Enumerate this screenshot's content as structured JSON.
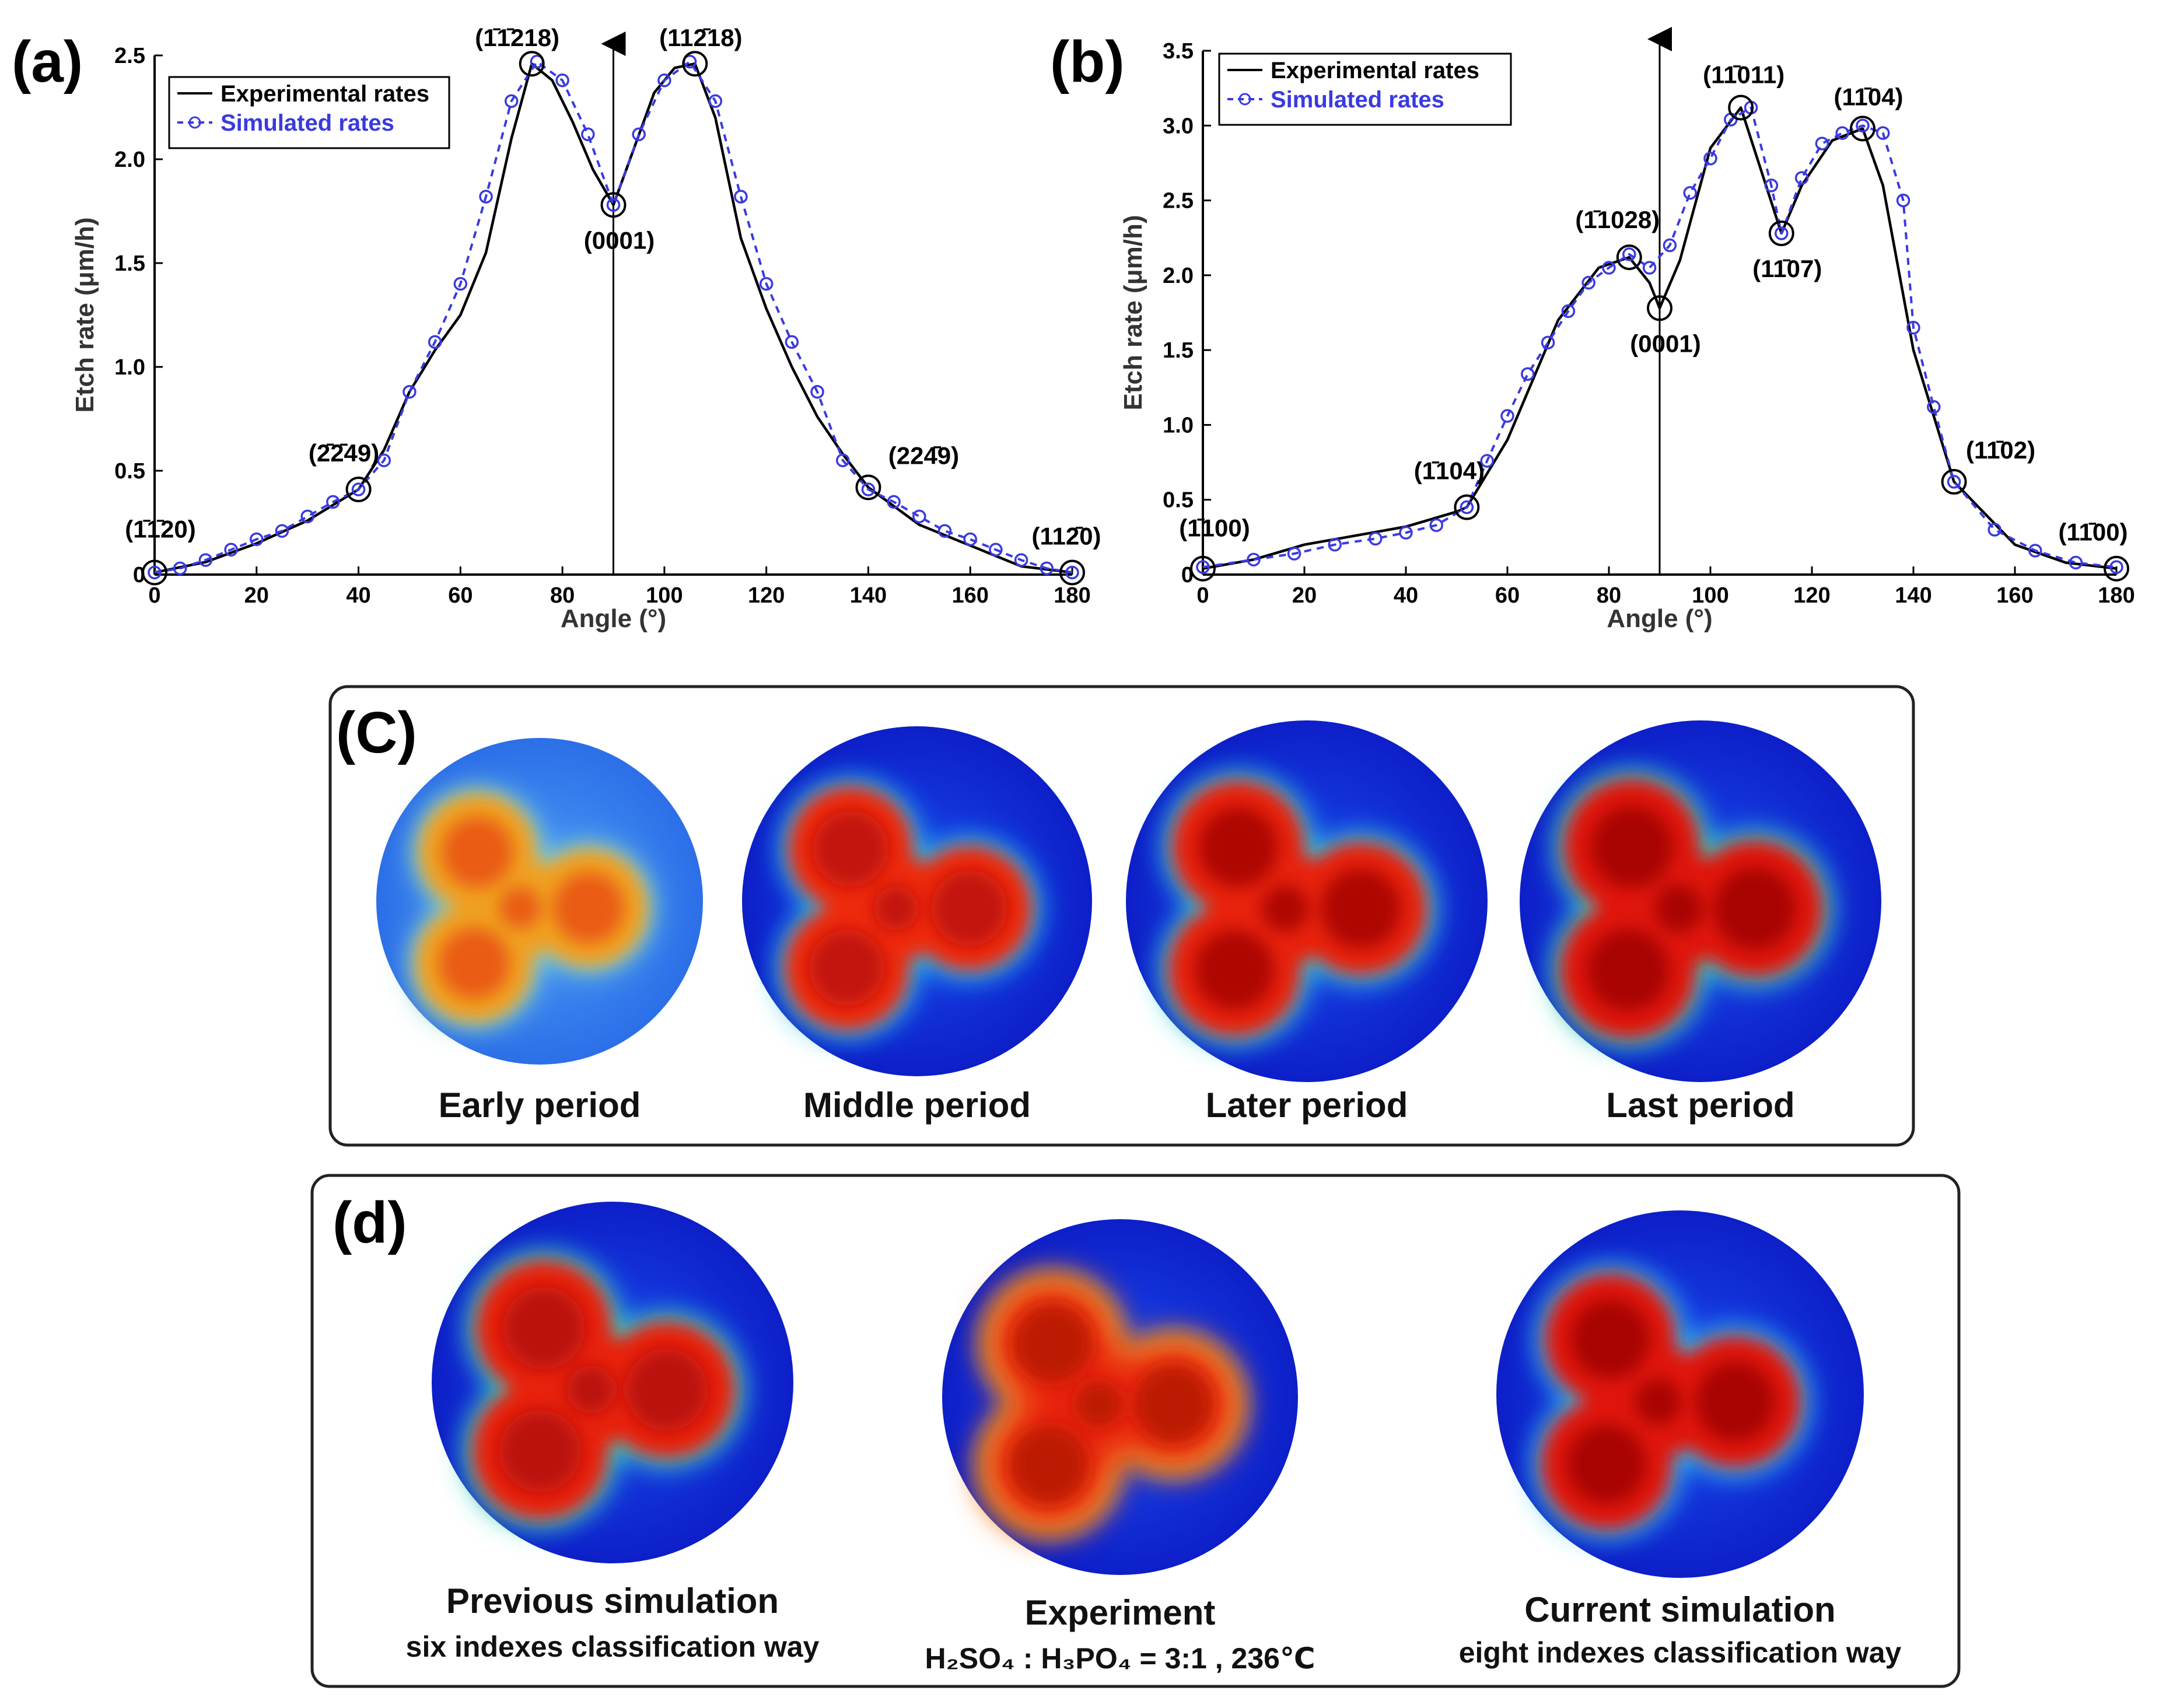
{
  "figure": {
    "panel_a": {
      "letter": "(a)"
    },
    "panel_b": {
      "letter": "(b)"
    },
    "panel_c": {
      "letter": "(C)",
      "images": [
        {
          "caption": "Early period",
          "caption_color": "#111111"
        },
        {
          "caption": "Middle period",
          "caption_color": "#111111"
        },
        {
          "caption": "Later period",
          "caption_color": "#4a4ad8"
        },
        {
          "caption": "Last period",
          "caption_color": "#111111"
        }
      ]
    },
    "panel_d": {
      "letter": "(d)",
      "images": [
        {
          "caption": "Previous simulation",
          "subcaption": "six indexes classification way"
        },
        {
          "caption": "Experiment",
          "subcaption": "H₂SO₄ : H₃PO₄ = 3:1 ,  236℃"
        },
        {
          "caption": "Current simulation",
          "subcaption": "eight indexes classification way"
        }
      ]
    }
  },
  "chart_data": [
    {
      "panel": "(a)",
      "type": "line",
      "xlabel": "Angle (°)",
      "ylabel": "Etch rate (μm/h)",
      "xlim": [
        0,
        180
      ],
      "ylim": [
        0,
        2.5
      ],
      "xticks": [
        "0",
        "20",
        "40",
        "60",
        "80",
        "100",
        "120",
        "140",
        "160",
        "180"
      ],
      "yticks": [
        "0",
        "0.5",
        "1.0",
        "1.5",
        "2.0",
        "2.5"
      ],
      "legend": {
        "placement": "top-left",
        "entries": [
          "Experimental rates",
          "Simulated rates"
        ]
      },
      "vertical_arrow_at": 90,
      "series": [
        {
          "name": "Experimental rates",
          "color": "#000000",
          "style": "solid",
          "x": [
            0,
            10,
            20,
            30,
            40,
            45,
            50,
            55,
            60,
            65,
            70,
            74,
            78,
            82,
            86,
            90,
            94,
            98,
            102,
            106,
            110,
            115,
            120,
            125,
            130,
            135,
            140,
            150,
            160,
            170,
            180
          ],
          "y": [
            0.01,
            0.06,
            0.15,
            0.26,
            0.41,
            0.6,
            0.88,
            1.08,
            1.25,
            1.55,
            2.1,
            2.46,
            2.38,
            2.18,
            1.95,
            1.78,
            2.05,
            2.32,
            2.44,
            2.46,
            2.2,
            1.62,
            1.28,
            1.0,
            0.76,
            0.58,
            0.42,
            0.24,
            0.14,
            0.04,
            0.01
          ]
        },
        {
          "name": "Simulated rates",
          "color": "#3a3ae0",
          "style": "dashed",
          "markers": "circle",
          "x": [
            0,
            5,
            10,
            15,
            20,
            25,
            30,
            35,
            40,
            45,
            50,
            55,
            60,
            65,
            70,
            75,
            80,
            85,
            90,
            95,
            100,
            105,
            110,
            115,
            120,
            125,
            130,
            135,
            140,
            145,
            150,
            155,
            160,
            165,
            170,
            175,
            180
          ],
          "y": [
            0.01,
            0.03,
            0.07,
            0.12,
            0.17,
            0.21,
            0.28,
            0.35,
            0.41,
            0.55,
            0.88,
            1.12,
            1.4,
            1.82,
            2.28,
            2.47,
            2.38,
            2.12,
            1.78,
            2.12,
            2.38,
            2.47,
            2.28,
            1.82,
            1.4,
            1.12,
            0.88,
            0.55,
            0.41,
            0.35,
            0.28,
            0.21,
            0.17,
            0.12,
            0.07,
            0.03,
            0.01
          ]
        }
      ],
      "annotations": [
        {
          "label": "(1̄1̄20)",
          "x": 0,
          "y": 0.01
        },
        {
          "label": "(2̄2̄49)",
          "x": 40,
          "y": 0.41
        },
        {
          "label": "(1̄1̄218)",
          "x": 74,
          "y": 2.46
        },
        {
          "label": "(0001)",
          "x": 90,
          "y": 1.78
        },
        {
          "label": "(112̄18)",
          "x": 106,
          "y": 2.46
        },
        {
          "label": "(224̄9)",
          "x": 140,
          "y": 0.42
        },
        {
          "label": "(112̄0)",
          "x": 180,
          "y": 0.01
        }
      ]
    },
    {
      "panel": "(b)",
      "type": "line",
      "xlabel": "Angle (°)",
      "ylabel": "Etch rate (μm/h)",
      "xlim": [
        0,
        180
      ],
      "ylim": [
        0,
        3.5
      ],
      "xticks": [
        "0",
        "20",
        "40",
        "60",
        "80",
        "100",
        "120",
        "140",
        "160",
        "180"
      ],
      "yticks": [
        "0",
        "0.5",
        "1.0",
        "1.5",
        "2.0",
        "2.5",
        "3.0",
        "3.5"
      ],
      "legend": {
        "placement": "top-left",
        "entries": [
          "Experimental rates",
          "Simulated rates"
        ]
      },
      "vertical_arrow_at": 90,
      "series": [
        {
          "name": "Experimental rates",
          "color": "#000000",
          "style": "solid",
          "x": [
            0,
            10,
            20,
            30,
            40,
            50,
            52,
            60,
            70,
            78,
            84,
            88,
            90,
            94,
            100,
            106,
            110,
            114,
            118,
            124,
            130,
            134,
            140,
            148,
            160,
            170,
            180
          ],
          "y": [
            0.04,
            0.1,
            0.2,
            0.26,
            0.32,
            0.42,
            0.45,
            0.9,
            1.7,
            2.05,
            2.12,
            1.95,
            1.78,
            2.1,
            2.85,
            3.12,
            2.7,
            2.28,
            2.6,
            2.9,
            2.98,
            2.6,
            1.5,
            0.62,
            0.2,
            0.08,
            0.04
          ]
        },
        {
          "name": "Simulated rates",
          "color": "#3a3ae0",
          "style": "dashed",
          "markers": "circle",
          "x": [
            0,
            10,
            18,
            26,
            34,
            40,
            46,
            52,
            56,
            60,
            64,
            68,
            72,
            76,
            80,
            84,
            88,
            92,
            96,
            100,
            104,
            108,
            112,
            114,
            118,
            122,
            126,
            130,
            134,
            138,
            140,
            144,
            148,
            156,
            164,
            172,
            180
          ],
          "y": [
            0.05,
            0.1,
            0.14,
            0.2,
            0.24,
            0.28,
            0.33,
            0.45,
            0.76,
            1.06,
            1.34,
            1.55,
            1.76,
            1.95,
            2.05,
            2.14,
            2.05,
            2.2,
            2.55,
            2.78,
            3.04,
            3.12,
            2.6,
            2.28,
            2.65,
            2.88,
            2.95,
            3.0,
            2.95,
            2.5,
            1.65,
            1.12,
            0.62,
            0.3,
            0.16,
            0.08,
            0.05
          ]
        }
      ],
      "annotations": [
        {
          "label": "(1̄100)",
          "x": 0,
          "y": 0.04
        },
        {
          "label": "(1̄104)",
          "x": 52,
          "y": 0.45
        },
        {
          "label": "(1̄1028)",
          "x": 84,
          "y": 2.12
        },
        {
          "label": "(0001)",
          "x": 90,
          "y": 1.78
        },
        {
          "label": "(11̄011)",
          "x": 106,
          "y": 3.12
        },
        {
          "label": "(11̄07)",
          "x": 114,
          "y": 2.28
        },
        {
          "label": "(11̄04)",
          "x": 130,
          "y": 2.98
        },
        {
          "label": "(11̄02)",
          "x": 148,
          "y": 0.62
        },
        {
          "label": "(11̄00)",
          "x": 180,
          "y": 0.04
        }
      ]
    }
  ]
}
